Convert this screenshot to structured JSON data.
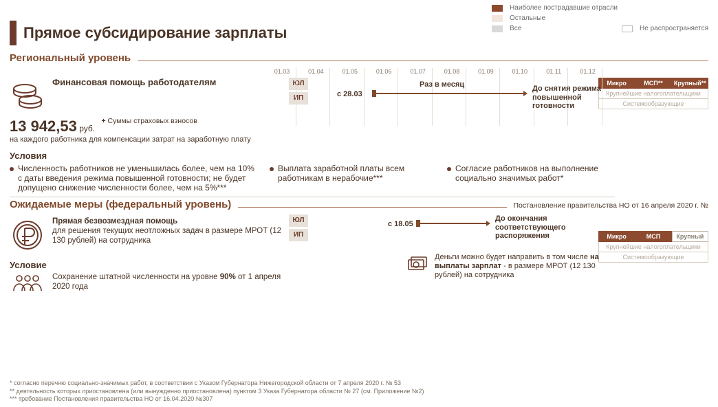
{
  "colors": {
    "brown_dark": "#6c3b2b",
    "brown": "#8c4a2f",
    "brown_text": "#4a3426",
    "brown_head": "#804a2c",
    "beige": "#f3e6dc",
    "pill_bg": "#e7e1d9",
    "grid": "#e6ddd2",
    "gray": "#bababa"
  },
  "page_title": "Прямое субсидирование зарплаты",
  "legend": {
    "most_affected": "Наиболее пострадавшие отрасли",
    "others": "Остальные",
    "all": "Все",
    "not_applicable": "Не распространяется"
  },
  "timeline_months": [
    "01.03",
    "01.04",
    "01.05",
    "01.06",
    "01.07",
    "01.08",
    "01.09",
    "01.10",
    "01.11",
    "01.12"
  ],
  "regional": {
    "heading": "Региональный уровень",
    "block_heading": "Финансовая помощь работодателям",
    "amount": "13 942,53",
    "amount_unit": "руб.",
    "plus_label": "+",
    "plus_note": "Суммы страховых взносов",
    "per_employee": "на каждого работника для компенсации затрат на заработную плату",
    "conditions_head": "Условия",
    "conditions": [
      "Численность работников не уменьшилась более, чем на 10% с даты введения режима повышенной готовности; не будет допущено снижение численности более, чем на 5%***",
      "Выплата заработной платы всем работникам в нерабочие***",
      "Согласие работников на выполнение социально значимых работ*"
    ],
    "pill_yul": "ЮЛ",
    "pill_ip": "ИП",
    "tl_start": "с 28.03",
    "tl_mid": "Раз в месяц",
    "tl_end": "До снятия режима повышенной готовности",
    "tags_row1": [
      "Микро",
      "МСП**",
      "Крупный**"
    ],
    "tags_active": [
      true,
      true,
      true
    ],
    "tags_row2": "Крупнейшие налогоплательщики",
    "tags_row3": "Системообразующие"
  },
  "federal": {
    "heading": "Ожидаемые меры (федеральный уровень)",
    "source": "Постановление правительства НО от 16 апреля 2020 г. №",
    "block_heading": "Прямая безвозмездная помощь",
    "block_body": "для решения текущих неотложных задач в размере МРОТ (12 130 рублей) на сотрудника",
    "condition_head": "Условие",
    "condition_body_a": "Сохранение штатной численности на уровне ",
    "condition_body_b": "90%",
    "condition_body_c": " от 1 апреля 2020 года",
    "pill_yul": "ЮЛ",
    "pill_ip": "ИП",
    "tl_start": "с 18.05",
    "tl_end": "До окончания соответствующего распоряжения",
    "money_note_a": "Деньги можно будет направить в том числе ",
    "money_note_b": "на выплаты зарплат",
    "money_note_c": " - в размере МРОТ (12 130 рублей) на сотрудника",
    "tags_row1": [
      "Микро",
      "МСП",
      "Крупный"
    ],
    "tags_active": [
      true,
      true,
      false
    ],
    "tags_row2": "Крупнейшие налогоплательщики",
    "tags_row3": "Системообразующие"
  },
  "footnotes": [
    "* согласно перечню социально-значимых работ, в соответствии с Указом Губернатора Нижегородской области от 7 апреля 2020 г. № 53",
    "** деятельность которых приостановлена (или вынужденно приостановлена) пунктом 3 Указа Губернатора области № 27 (см. Приложение №2)",
    "*** требование Постановления правительства НО от 16.04.2020 №307"
  ]
}
